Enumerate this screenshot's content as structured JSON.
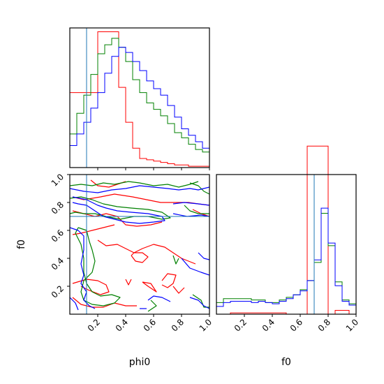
{
  "colors": {
    "red": "#ff0000",
    "green": "#008000",
    "blue": "#0000ff",
    "truth": "#1f77b4"
  },
  "chart_data": {
    "type": "corner",
    "parameters": [
      "phi0",
      "f0"
    ],
    "truths": {
      "phi0": 0.12,
      "f0": 0.7
    },
    "ranges": {
      "phi0": [
        0.0,
        1.0
      ],
      "f0": [
        0.0,
        1.0
      ]
    },
    "bins": [
      0.0,
      0.05,
      0.1,
      0.15,
      0.2,
      0.25,
      0.3,
      0.35,
      0.4,
      0.45,
      0.5,
      0.55,
      0.6,
      0.65,
      0.7,
      0.75,
      0.8,
      0.85,
      0.9,
      0.95,
      1.0
    ],
    "tick_values": [
      0.2,
      0.4,
      0.6,
      0.8,
      1.0
    ],
    "tick_labels": [
      "0.2",
      "0.4",
      "0.6",
      "0.8",
      "1.0"
    ],
    "xlabels": [
      "phi0",
      "f0"
    ],
    "ylabel": "f0",
    "hist_phi0": {
      "series": [
        {
          "color": "red",
          "values": [
            0.58,
            0.58,
            0.58,
            0.58,
            1.05,
            1.05,
            1.05,
            0.62,
            0.35,
            0.15,
            0.07,
            0.06,
            0.05,
            0.04,
            0.03,
            0.02,
            0.02,
            0.01,
            0.01,
            0.01
          ]
        },
        {
          "color": "green",
          "values": [
            0.26,
            0.42,
            0.56,
            0.72,
            0.88,
            0.95,
            1.0,
            0.93,
            0.82,
            0.68,
            0.58,
            0.5,
            0.45,
            0.4,
            0.34,
            0.27,
            0.23,
            0.18,
            0.14,
            0.12
          ]
        },
        {
          "color": "blue",
          "values": [
            0.17,
            0.26,
            0.35,
            0.46,
            0.58,
            0.73,
            0.86,
            0.93,
            0.89,
            0.82,
            0.75,
            0.67,
            0.61,
            0.56,
            0.48,
            0.39,
            0.3,
            0.25,
            0.2,
            0.15
          ]
        }
      ]
    },
    "hist_f0": {
      "series": [
        {
          "color": "red",
          "values": [
            0.0,
            0.0,
            0.01,
            0.01,
            0.01,
            0.01,
            0.01,
            0.01,
            0.01,
            0.01,
            0.0,
            0.0,
            0.0,
            1.3,
            1.3,
            1.3,
            0.0,
            0.03,
            0.03,
            0.0
          ]
        },
        {
          "color": "green",
          "values": [
            0.09,
            0.12,
            0.12,
            0.12,
            0.12,
            0.11,
            0.11,
            0.09,
            0.09,
            0.11,
            0.13,
            0.15,
            0.19,
            0.26,
            0.4,
            0.78,
            0.53,
            0.25,
            0.11,
            0.08
          ]
        },
        {
          "color": "blue",
          "values": [
            0.06,
            0.09,
            0.1,
            0.1,
            0.1,
            0.09,
            0.1,
            0.09,
            0.08,
            0.1,
            0.12,
            0.15,
            0.18,
            0.26,
            0.42,
            0.82,
            0.55,
            0.22,
            0.1,
            0.07
          ]
        }
      ]
    },
    "contours": [
      {
        "color": "red",
        "lines": [
          [
            [
              0.15,
              0.96
            ],
            [
              0.2,
              0.92
            ],
            [
              0.28,
              0.91
            ],
            [
              0.34,
              0.93
            ],
            [
              0.4,
              0.95
            ]
          ],
          [
            [
              0.02,
              0.84
            ],
            [
              0.1,
              0.82
            ],
            [
              0.22,
              0.84
            ],
            [
              0.32,
              0.86
            ],
            [
              0.45,
              0.84
            ],
            [
              0.55,
              0.82
            ],
            [
              0.65,
              0.8
            ],
            [
              0.75,
              0.8
            ],
            [
              0.85,
              0.8
            ],
            [
              0.92,
              0.79
            ],
            [
              1.0,
              0.78
            ]
          ],
          [
            [
              0.02,
              0.74
            ],
            [
              0.1,
              0.72
            ],
            [
              0.18,
              0.7
            ],
            [
              0.26,
              0.72
            ],
            [
              0.34,
              0.7
            ],
            [
              0.4,
              0.64
            ],
            [
              0.48,
              0.63
            ],
            [
              0.58,
              0.64
            ],
            [
              0.66,
              0.66
            ]
          ],
          [
            [
              0.88,
              0.75
            ],
            [
              0.94,
              0.72
            ],
            [
              1.0,
              0.7
            ]
          ],
          [
            [
              0.02,
              0.57
            ],
            [
              0.08,
              0.58
            ],
            [
              0.16,
              0.6
            ],
            [
              0.24,
              0.62
            ],
            [
              0.32,
              0.64
            ]
          ],
          [
            [
              0.2,
              0.53
            ],
            [
              0.26,
              0.49
            ],
            [
              0.34,
              0.5
            ],
            [
              0.4,
              0.47
            ],
            [
              0.46,
              0.44
            ],
            [
              0.52,
              0.47
            ],
            [
              0.6,
              0.5
            ],
            [
              0.68,
              0.48
            ],
            [
              0.74,
              0.44
            ],
            [
              0.8,
              0.4
            ],
            [
              0.9,
              0.36
            ]
          ],
          [
            [
              0.44,
              0.42
            ],
            [
              0.47,
              0.38
            ],
            [
              0.52,
              0.37
            ],
            [
              0.56,
              0.41
            ],
            [
              0.52,
              0.44
            ],
            [
              0.46,
              0.44
            ],
            [
              0.44,
              0.42
            ]
          ],
          [
            [
              0.02,
              0.22
            ],
            [
              0.12,
              0.25
            ],
            [
              0.2,
              0.24
            ],
            [
              0.26,
              0.21
            ],
            [
              0.28,
              0.16
            ],
            [
              0.22,
              0.14
            ],
            [
              0.14,
              0.17
            ],
            [
              0.08,
              0.2
            ]
          ],
          [
            [
              0.4,
              0.25
            ],
            [
              0.42,
              0.21
            ],
            [
              0.44,
              0.25
            ]
          ],
          [
            [
              0.52,
              0.23
            ],
            [
              0.56,
              0.2
            ],
            [
              0.62,
              0.16
            ],
            [
              0.58,
              0.22
            ],
            [
              0.52,
              0.23
            ]
          ],
          [
            [
              0.66,
              0.24
            ],
            [
              0.7,
              0.29
            ],
            [
              0.76,
              0.28
            ],
            [
              0.74,
              0.22
            ],
            [
              0.7,
              0.19
            ],
            [
              0.66,
              0.21
            ]
          ],
          [
            [
              0.74,
              0.2
            ],
            [
              0.78,
              0.15
            ],
            [
              0.82,
              0.19
            ]
          ],
          [
            [
              0.02,
              0.12
            ],
            [
              0.08,
              0.07
            ],
            [
              0.16,
              0.05
            ],
            [
              0.24,
              0.05
            ],
            [
              0.32,
              0.08
            ],
            [
              0.4,
              0.06
            ],
            [
              0.48,
              0.06
            ]
          ]
        ]
      },
      {
        "color": "green",
        "lines": [
          [
            [
              0.0,
              0.92
            ],
            [
              0.08,
              0.93
            ],
            [
              0.16,
              0.92
            ],
            [
              0.24,
              0.94
            ],
            [
              0.32,
              0.93
            ],
            [
              0.42,
              0.95
            ],
            [
              0.5,
              0.94
            ],
            [
              0.6,
              0.92
            ],
            [
              0.7,
              0.93
            ],
            [
              0.78,
              0.91
            ],
            [
              0.86,
              0.93
            ],
            [
              0.92,
              0.95
            ]
          ],
          [
            [
              0.0,
              0.83
            ],
            [
              0.08,
              0.84
            ],
            [
              0.16,
              0.82
            ],
            [
              0.24,
              0.79
            ],
            [
              0.34,
              0.77
            ],
            [
              0.44,
              0.76
            ],
            [
              0.56,
              0.75
            ],
            [
              0.66,
              0.73
            ],
            [
              0.72,
              0.69
            ],
            [
              0.66,
              0.68
            ],
            [
              0.56,
              0.7
            ],
            [
              0.46,
              0.7
            ],
            [
              0.36,
              0.68
            ],
            [
              0.26,
              0.7
            ],
            [
              0.18,
              0.72
            ],
            [
              0.1,
              0.72
            ],
            [
              0.04,
              0.73
            ],
            [
              0.0,
              0.72
            ]
          ],
          [
            [
              0.06,
              0.62
            ],
            [
              0.12,
              0.6
            ],
            [
              0.14,
              0.52
            ],
            [
              0.16,
              0.46
            ],
            [
              0.18,
              0.38
            ],
            [
              0.16,
              0.3
            ],
            [
              0.1,
              0.24
            ],
            [
              0.08,
              0.16
            ],
            [
              0.1,
              0.1
            ],
            [
              0.16,
              0.07
            ],
            [
              0.24,
              0.06
            ],
            [
              0.32,
              0.08
            ],
            [
              0.36,
              0.12
            ],
            [
              0.3,
              0.14
            ],
            [
              0.22,
              0.13
            ],
            [
              0.16,
              0.16
            ],
            [
              0.12,
              0.22
            ],
            [
              0.1,
              0.3
            ],
            [
              0.1,
              0.4
            ],
            [
              0.08,
              0.5
            ],
            [
              0.04,
              0.58
            ],
            [
              0.06,
              0.62
            ]
          ],
          [
            [
              0.86,
              0.94
            ],
            [
              0.92,
              0.92
            ],
            [
              0.96,
              0.88
            ],
            [
              1.0,
              0.86
            ]
          ],
          [
            [
              0.82,
              0.78
            ],
            [
              0.86,
              0.74
            ],
            [
              0.92,
              0.72
            ],
            [
              1.0,
              0.72
            ]
          ],
          [
            [
              0.74,
              0.42
            ],
            [
              0.76,
              0.36
            ],
            [
              0.78,
              0.4
            ]
          ],
          [
            [
              0.88,
              0.14
            ],
            [
              0.94,
              0.1
            ],
            [
              0.96,
              0.05
            ],
            [
              1.0,
              0.05
            ]
          ],
          [
            [
              0.56,
              0.02
            ],
            [
              0.62,
              0.06
            ],
            [
              0.58,
              0.1
            ]
          ]
        ]
      },
      {
        "color": "blue",
        "lines": [
          [
            [
              0.0,
              0.9
            ],
            [
              0.1,
              0.88
            ],
            [
              0.2,
              0.87
            ],
            [
              0.3,
              0.89
            ],
            [
              0.4,
              0.9
            ],
            [
              0.5,
              0.92
            ],
            [
              0.6,
              0.91
            ],
            [
              0.7,
              0.9
            ],
            [
              0.78,
              0.89
            ],
            [
              0.86,
              0.9
            ],
            [
              0.92,
              0.89
            ],
            [
              1.0,
              0.91
            ]
          ],
          [
            [
              0.02,
              0.84
            ],
            [
              0.12,
              0.82
            ],
            [
              0.2,
              0.78
            ],
            [
              0.26,
              0.76
            ],
            [
              0.34,
              0.74
            ],
            [
              0.44,
              0.73
            ],
            [
              0.56,
              0.72
            ],
            [
              0.66,
              0.7
            ],
            [
              0.68,
              0.67
            ],
            [
              0.6,
              0.66
            ],
            [
              0.5,
              0.65
            ],
            [
              0.4,
              0.66
            ],
            [
              0.32,
              0.68
            ],
            [
              0.24,
              0.7
            ],
            [
              0.18,
              0.74
            ],
            [
              0.12,
              0.78
            ],
            [
              0.06,
              0.79
            ],
            [
              0.02,
              0.8
            ]
          ],
          [
            [
              0.74,
              0.79
            ],
            [
              0.82,
              0.8
            ],
            [
              0.92,
              0.79
            ],
            [
              1.0,
              0.78
            ]
          ],
          [
            [
              0.74,
              0.72
            ],
            [
              0.84,
              0.7
            ],
            [
              0.94,
              0.71
            ],
            [
              1.0,
              0.7
            ]
          ],
          [
            [
              0.92,
              0.44
            ],
            [
              0.96,
              0.4
            ],
            [
              1.0,
              0.39
            ]
          ],
          [
            [
              0.8,
              0.4
            ],
            [
              0.86,
              0.33
            ],
            [
              0.94,
              0.3
            ],
            [
              1.0,
              0.28
            ]
          ],
          [
            [
              0.0,
              0.62
            ],
            [
              0.06,
              0.6
            ],
            [
              0.1,
              0.56
            ],
            [
              0.1,
              0.46
            ],
            [
              0.08,
              0.36
            ],
            [
              0.1,
              0.28
            ],
            [
              0.08,
              0.22
            ],
            [
              0.12,
              0.16
            ],
            [
              0.1,
              0.1
            ],
            [
              0.14,
              0.06
            ],
            [
              0.18,
              0.04
            ]
          ],
          [
            [
              0.56,
              0.1
            ],
            [
              0.6,
              0.13
            ],
            [
              0.66,
              0.12
            ],
            [
              0.72,
              0.09
            ]
          ],
          [
            [
              0.5,
              0.04
            ],
            [
              0.55,
              0.04
            ]
          ],
          [
            [
              0.86,
              0.12
            ],
            [
              0.92,
              0.1
            ],
            [
              0.96,
              0.06
            ],
            [
              1.0,
              0.04
            ]
          ],
          [
            [
              0.0,
              0.12
            ],
            [
              0.04,
              0.08
            ],
            [
              0.06,
              0.03
            ]
          ]
        ]
      }
    ]
  }
}
